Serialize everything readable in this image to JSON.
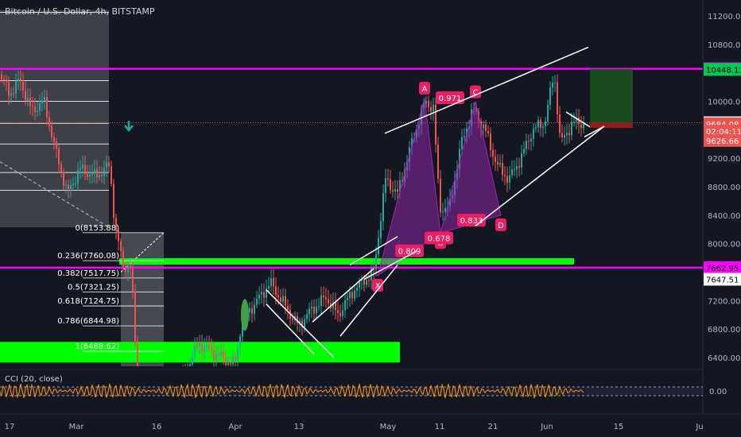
{
  "header": {
    "title": "Bitcoin / U.S. Dollar, 4h, BITSTAMP"
  },
  "colors": {
    "background": "#131722",
    "up": "#26a69a",
    "down": "#ef5350",
    "magenta": "#ff00ff",
    "green_zone": "#00ff00",
    "pattern": "#9c27b0",
    "cci": "#ff9800"
  },
  "chart_data": {
    "type": "candlestick",
    "title": "Bitcoin / U.S. Dollar, 4h, BITSTAMP",
    "ylim": [
      6050,
      12300
    ],
    "y_ticks": [
      "11200.00",
      "10800.00",
      "10400.00",
      "10000.00",
      "9600.00",
      "9200.00",
      "8800.00",
      "8400.00",
      "8000.00",
      "7600.00",
      "7200.00",
      "6800.00",
      "6400.00"
    ],
    "x_ticks": [
      "17",
      "Mar",
      "16",
      "Apr",
      "13",
      "May",
      "11",
      "21",
      "Jun",
      "15",
      "Ju"
    ],
    "price_badges": [
      {
        "label": "10456.85",
        "value": 10456.85,
        "style": "magenta"
      },
      {
        "label": "10448.11",
        "value": 10448.11,
        "style": "green"
      },
      {
        "label": "9698.87",
        "value": 9698.87,
        "style": "dark"
      },
      {
        "label": "9684.08",
        "value": 9684.08,
        "style": "red"
      },
      {
        "label": "02:04:11",
        "value": 9580,
        "style": "red"
      },
      {
        "label": "9626.66",
        "value": 9450,
        "style": "red"
      },
      {
        "label": "7662.95",
        "value": 7662.95,
        "style": "magenta"
      },
      {
        "label": "7647.51",
        "value": 7500,
        "style": "dark"
      }
    ],
    "fib_levels": [
      {
        "label": "0(8153.88)",
        "value": 8153.88
      },
      {
        "label": "0.236(7760.08)",
        "value": 7760.08
      },
      {
        "label": "0.382(7517.75)",
        "value": 7517.75
      },
      {
        "label": "0.5(7321.25)",
        "value": 7321.25
      },
      {
        "label": "0.618(7124.75)",
        "value": 7124.75
      },
      {
        "label": "0.786(6844.98)",
        "value": 6844.98
      },
      {
        "label": "1(6488.62)",
        "value": 6488.62
      }
    ],
    "horizontal_lines": [
      {
        "name": "resistance",
        "value": 10456.85
      },
      {
        "name": "support",
        "value": 7662.95
      }
    ],
    "pattern_points": [
      {
        "label": "X",
        "value": 7550
      },
      {
        "label": "A",
        "value": 10050
      },
      {
        "label": "B",
        "value": 8150
      },
      {
        "label": "C",
        "value": 10000
      },
      {
        "label": "D",
        "value": 8400
      }
    ],
    "ratios": [
      "0.809",
      "0.971",
      "0.678",
      "0.833"
    ],
    "cci": {
      "label": "CCI (20, close)",
      "value_label": "0.00"
    }
  }
}
